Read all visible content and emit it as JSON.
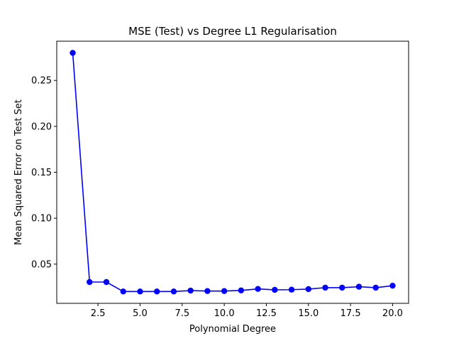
{
  "chart_data": {
    "type": "line",
    "title": "MSE (Test) vs Degree L1 Regularisation",
    "xlabel": "Polynomial Degree",
    "ylabel": "Mean Squared Error on Test Set",
    "xlim": [
      0.05,
      20.95
    ],
    "ylim": [
      0.0073,
      0.2927
    ],
    "x_ticks": [
      2.5,
      5.0,
      7.5,
      10.0,
      12.5,
      15.0,
      17.5,
      20.0
    ],
    "x_tick_labels": [
      "2.5",
      "5.0",
      "7.5",
      "10.0",
      "12.5",
      "15.0",
      "17.5",
      "20.0"
    ],
    "y_ticks": [
      0.05,
      0.1,
      0.15,
      0.2,
      0.25
    ],
    "y_tick_labels": [
      "0.05",
      "0.10",
      "0.15",
      "0.20",
      "0.25"
    ],
    "grid": false,
    "series": [
      {
        "color": "#0000ff",
        "marker": "circle",
        "x": [
          1,
          2,
          3,
          4,
          5,
          6,
          7,
          8,
          9,
          10,
          11,
          12,
          13,
          14,
          15,
          16,
          17,
          18,
          19,
          20
        ],
        "y": [
          0.28,
          0.0305,
          0.0305,
          0.0202,
          0.0202,
          0.0202,
          0.0202,
          0.0212,
          0.0207,
          0.0207,
          0.0214,
          0.023,
          0.022,
          0.0222,
          0.0228,
          0.0244,
          0.0244,
          0.0254,
          0.0244,
          0.0265
        ]
      }
    ]
  }
}
